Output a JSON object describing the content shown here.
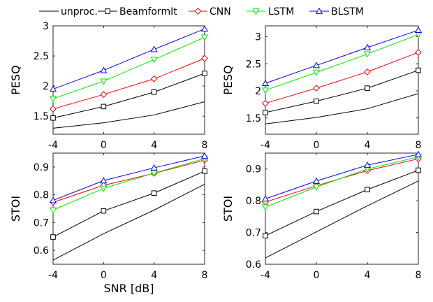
{
  "legend": {
    "placement": "top",
    "entries": [
      {
        "name": "unproc.",
        "color": "#000000",
        "marker": "none"
      },
      {
        "name": "BeamformIt",
        "color": "#000000",
        "marker": "square"
      },
      {
        "name": "CNN",
        "color": "#ff0000",
        "marker": "diamond"
      },
      {
        "name": "LSTM",
        "color": "#00ee00",
        "marker": "triangle-down"
      },
      {
        "name": "BLSTM",
        "color": "#0000ff",
        "marker": "triangle-up"
      }
    ]
  },
  "chart_data": [
    {
      "type": "line",
      "xlabel": "",
      "ylabel": "PESQ",
      "x": [
        -4,
        0,
        4,
        8
      ],
      "x_ticks": [
        "-4",
        "0",
        "4",
        "8"
      ],
      "xlim": [
        -4,
        8
      ],
      "ylim": [
        1.2,
        3.0
      ],
      "y_ticks": [
        "1.5",
        "2",
        "2.5",
        "3"
      ],
      "grid": false,
      "series": [
        {
          "name": "unproc.",
          "values": [
            1.3,
            1.39,
            1.52,
            1.74
          ]
        },
        {
          "name": "BeamformIt",
          "values": [
            1.47,
            1.66,
            1.9,
            2.21
          ]
        },
        {
          "name": "CNN",
          "values": [
            1.62,
            1.86,
            2.12,
            2.46
          ]
        },
        {
          "name": "LSTM",
          "values": [
            1.79,
            2.08,
            2.44,
            2.81
          ]
        },
        {
          "name": "BLSTM",
          "values": [
            1.95,
            2.26,
            2.61,
            2.95
          ]
        }
      ]
    },
    {
      "type": "line",
      "xlabel": "",
      "ylabel": "PESQ",
      "x": [
        -4,
        0,
        4,
        8
      ],
      "x_ticks": [
        "-4",
        "0",
        "4",
        "8"
      ],
      "xlim": [
        -4,
        8
      ],
      "ylim": [
        1.2,
        3.2
      ],
      "y_ticks": [
        "1.5",
        "2",
        "2.5",
        "3"
      ],
      "grid": false,
      "series": [
        {
          "name": "unproc.",
          "values": [
            1.39,
            1.51,
            1.67,
            1.95
          ]
        },
        {
          "name": "BeamformIt",
          "values": [
            1.6,
            1.81,
            2.05,
            2.38
          ]
        },
        {
          "name": "CNN",
          "values": [
            1.77,
            2.05,
            2.35,
            2.71
          ]
        },
        {
          "name": "LSTM",
          "values": [
            2.01,
            2.34,
            2.68,
            3.04
          ]
        },
        {
          "name": "BLSTM",
          "values": [
            2.14,
            2.47,
            2.8,
            3.12
          ]
        }
      ]
    },
    {
      "type": "line",
      "xlabel": "SNR [dB]",
      "ylabel": "STOI",
      "x": [
        -4,
        0,
        4,
        8
      ],
      "x_ticks": [
        "-4",
        "0",
        "4",
        "8"
      ],
      "xlim": [
        -4,
        8
      ],
      "ylim": [
        0.55,
        0.95
      ],
      "y_ticks": [
        "0.6",
        "0.7",
        "0.8",
        "0.9"
      ],
      "grid": false,
      "series": [
        {
          "name": "unproc.",
          "values": [
            0.565,
            0.66,
            0.745,
            0.838
          ]
        },
        {
          "name": "BeamformIt",
          "values": [
            0.648,
            0.742,
            0.806,
            0.885
          ]
        },
        {
          "name": "CNN",
          "values": [
            0.773,
            0.834,
            0.877,
            0.925
          ]
        },
        {
          "name": "LSTM",
          "values": [
            0.745,
            0.823,
            0.878,
            0.93
          ]
        },
        {
          "name": "BLSTM",
          "values": [
            0.78,
            0.851,
            0.897,
            0.94
          ]
        }
      ]
    },
    {
      "type": "line",
      "xlabel": "",
      "ylabel": "STOI",
      "x": [
        -4,
        0,
        4,
        8
      ],
      "x_ticks": [
        "-4",
        "0",
        "4",
        "8"
      ],
      "xlim": [
        -4,
        8
      ],
      "ylim": [
        0.6,
        0.95
      ],
      "y_ticks": [
        "0.6",
        "0.7",
        "0.8",
        "0.9"
      ],
      "grid": false,
      "series": [
        {
          "name": "unproc.",
          "values": [
            0.62,
            0.702,
            0.784,
            0.862
          ]
        },
        {
          "name": "BeamformIt",
          "values": [
            0.69,
            0.766,
            0.835,
            0.896
          ]
        },
        {
          "name": "CNN",
          "values": [
            0.796,
            0.847,
            0.895,
            0.932
          ]
        },
        {
          "name": "LSTM",
          "values": [
            0.78,
            0.843,
            0.9,
            0.938
          ]
        },
        {
          "name": "BLSTM",
          "values": [
            0.806,
            0.862,
            0.912,
            0.946
          ]
        }
      ]
    }
  ]
}
